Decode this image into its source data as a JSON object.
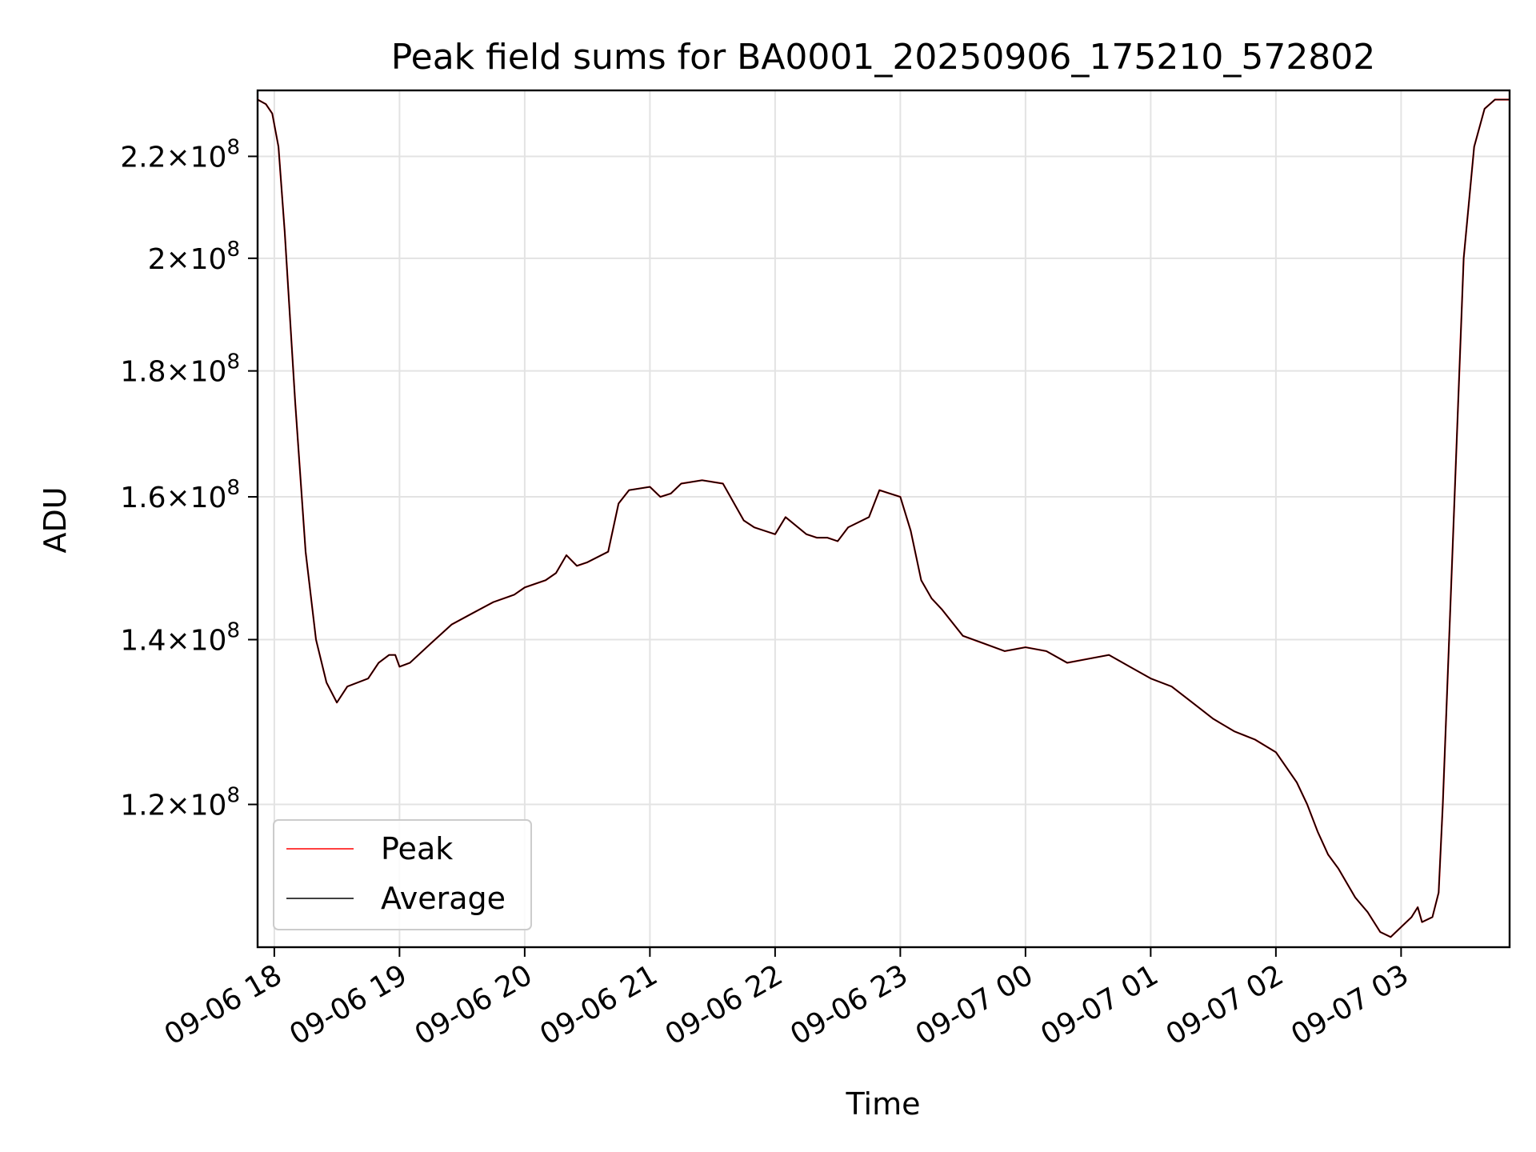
{
  "chart_data": {
    "type": "line",
    "title": "Peak field sums for BA0001_20250906_175210_572802",
    "xlabel": "Time",
    "ylabel": "ADU",
    "y_scale": "log",
    "ylim": [
      105000000.0,
      234000000.0
    ],
    "xlim": [
      "2025-09-06 17:52",
      "2025-09-07 03:52"
    ],
    "grid": true,
    "legend_position": "lower-left",
    "x_tick_values": [
      "2025-09-06 18:00",
      "2025-09-06 19:00",
      "2025-09-06 20:00",
      "2025-09-06 21:00",
      "2025-09-06 22:00",
      "2025-09-06 23:00",
      "2025-09-07 00:00",
      "2025-09-07 01:00",
      "2025-09-07 02:00",
      "2025-09-07 03:00"
    ],
    "x_tick_labels": [
      "09-06 18",
      "09-06 19",
      "09-06 20",
      "09-06 21",
      "09-06 22",
      "09-06 23",
      "09-07 00",
      "09-07 01",
      "09-07 02",
      "09-07 03"
    ],
    "y_tick_values": [
      120000000.0,
      140000000.0,
      160000000.0,
      180000000.0,
      200000000.0,
      220000000.0
    ],
    "y_tick_labels": [
      {
        "mantissa": "1.2",
        "base": "10",
        "exp": "8"
      },
      {
        "mantissa": "1.4",
        "base": "10",
        "exp": "8"
      },
      {
        "mantissa": "1.6",
        "base": "10",
        "exp": "8"
      },
      {
        "mantissa": "1.8",
        "base": "10",
        "exp": "8"
      },
      {
        "mantissa": "2",
        "base": "10",
        "exp": "8"
      },
      {
        "mantissa": "2.2",
        "base": "10",
        "exp": "8"
      }
    ],
    "x": [
      "2025-09-06 17:52",
      "2025-09-06 17:56",
      "2025-09-06 17:59",
      "2025-09-06 18:02",
      "2025-09-06 18:05",
      "2025-09-06 18:10",
      "2025-09-06 18:15",
      "2025-09-06 18:20",
      "2025-09-06 18:25",
      "2025-09-06 18:30",
      "2025-09-06 18:35",
      "2025-09-06 18:40",
      "2025-09-06 18:45",
      "2025-09-06 18:50",
      "2025-09-06 18:55",
      "2025-09-06 18:58",
      "2025-09-06 19:00",
      "2025-09-06 19:05",
      "2025-09-06 19:15",
      "2025-09-06 19:25",
      "2025-09-06 19:35",
      "2025-09-06 19:45",
      "2025-09-06 19:55",
      "2025-09-06 20:00",
      "2025-09-06 20:10",
      "2025-09-06 20:15",
      "2025-09-06 20:20",
      "2025-09-06 20:25",
      "2025-09-06 20:30",
      "2025-09-06 20:40",
      "2025-09-06 20:45",
      "2025-09-06 20:50",
      "2025-09-06 21:00",
      "2025-09-06 21:05",
      "2025-09-06 21:10",
      "2025-09-06 21:15",
      "2025-09-06 21:25",
      "2025-09-06 21:35",
      "2025-09-06 21:45",
      "2025-09-06 21:50",
      "2025-09-06 21:55",
      "2025-09-06 22:00",
      "2025-09-06 22:05",
      "2025-09-06 22:15",
      "2025-09-06 22:20",
      "2025-09-06 22:25",
      "2025-09-06 22:30",
      "2025-09-06 22:35",
      "2025-09-06 22:45",
      "2025-09-06 22:50",
      "2025-09-06 22:55",
      "2025-09-06 23:00",
      "2025-09-06 23:05",
      "2025-09-06 23:10",
      "2025-09-06 23:15",
      "2025-09-06 23:20",
      "2025-09-06 23:30",
      "2025-09-06 23:40",
      "2025-09-06 23:50",
      "2025-09-07 00:00",
      "2025-09-07 00:10",
      "2025-09-07 00:20",
      "2025-09-07 00:30",
      "2025-09-07 00:40",
      "2025-09-07 00:50",
      "2025-09-07 01:00",
      "2025-09-07 01:10",
      "2025-09-07 01:20",
      "2025-09-07 01:30",
      "2025-09-07 01:40",
      "2025-09-07 01:45",
      "2025-09-07 01:50",
      "2025-09-07 02:00",
      "2025-09-07 02:10",
      "2025-09-07 02:15",
      "2025-09-07 02:20",
      "2025-09-07 02:25",
      "2025-09-07 02:30",
      "2025-09-07 02:38",
      "2025-09-07 02:44",
      "2025-09-07 02:50",
      "2025-09-07 02:55",
      "2025-09-07 03:00",
      "2025-09-07 03:05",
      "2025-09-07 03:08",
      "2025-09-07 03:10",
      "2025-09-07 03:15",
      "2025-09-07 03:18",
      "2025-09-07 03:20",
      "2025-09-07 03:25",
      "2025-09-07 03:30",
      "2025-09-07 03:35",
      "2025-09-07 03:40",
      "2025-09-07 03:45",
      "2025-09-07 03:52"
    ],
    "series": [
      {
        "name": "Peak",
        "color": "#ff0000",
        "values": [
          232000000.0,
          231000000.0,
          229000000.0,
          222000000.0,
          205000000.0,
          175000000.0,
          152000000.0,
          140000000.0,
          134500000.0,
          132000000.0,
          134000000.0,
          134500000.0,
          135000000.0,
          137000000.0,
          138000000.0,
          138000000.0,
          136500000.0,
          137000000.0,
          139500000.0,
          142000000.0,
          143500000.0,
          145000000.0,
          146000000.0,
          147000000.0,
          148000000.0,
          149000000.0,
          151500000.0,
          150000000.0,
          150500000.0,
          152000000.0,
          159000000.0,
          161000000.0,
          161500000.0,
          160000000.0,
          160500000.0,
          162000000.0,
          162500000.0,
          162000000.0,
          156500000.0,
          155500000.0,
          155000000.0,
          154500000.0,
          157000000.0,
          154500000.0,
          154000000.0,
          154000000.0,
          153500000.0,
          155500000.0,
          157000000.0,
          161000000.0,
          160500000.0,
          160000000.0,
          155000000.0,
          148000000.0,
          145500000.0,
          144000000.0,
          140500000.0,
          139500000.0,
          138500000.0,
          139000000.0,
          138500000.0,
          137000000.0,
          137500000.0,
          138000000.0,
          136500000.0,
          135000000.0,
          134000000.0,
          132000000.0,
          130000000.0,
          128500000.0,
          128000000.0,
          127500000.0,
          126000000.0,
          122500000.0,
          120000000.0,
          117000000.0,
          114500000.0,
          113000000.0,
          110000000.0,
          108500000.0,
          106500000.0,
          106000000.0,
          107000000.0,
          108000000.0,
          109000000.0,
          107500000.0,
          108000000.0,
          110500000.0,
          120000000.0,
          155000000.0,
          200000000.0,
          222000000.0,
          230000000.0,
          232000000.0,
          232000000.0
        ]
      },
      {
        "name": "Average",
        "color": "#000000",
        "values": [
          232000000.0,
          231000000.0,
          229000000.0,
          222000000.0,
          205000000.0,
          175000000.0,
          152000000.0,
          140000000.0,
          134500000.0,
          132000000.0,
          134000000.0,
          134500000.0,
          135000000.0,
          137000000.0,
          138000000.0,
          138000000.0,
          136500000.0,
          137000000.0,
          139500000.0,
          142000000.0,
          143500000.0,
          145000000.0,
          146000000.0,
          147000000.0,
          148000000.0,
          149000000.0,
          151500000.0,
          150000000.0,
          150500000.0,
          152000000.0,
          159000000.0,
          161000000.0,
          161500000.0,
          160000000.0,
          160500000.0,
          162000000.0,
          162500000.0,
          162000000.0,
          156500000.0,
          155500000.0,
          155000000.0,
          154500000.0,
          157000000.0,
          154500000.0,
          154000000.0,
          154000000.0,
          153500000.0,
          155500000.0,
          157000000.0,
          161000000.0,
          160500000.0,
          160000000.0,
          155000000.0,
          148000000.0,
          145500000.0,
          144000000.0,
          140500000.0,
          139500000.0,
          138500000.0,
          139000000.0,
          138500000.0,
          137000000.0,
          137500000.0,
          138000000.0,
          136500000.0,
          135000000.0,
          134000000.0,
          132000000.0,
          130000000.0,
          128500000.0,
          128000000.0,
          127500000.0,
          126000000.0,
          122500000.0,
          120000000.0,
          117000000.0,
          114500000.0,
          113000000.0,
          110000000.0,
          108500000.0,
          106500000.0,
          106000000.0,
          107000000.0,
          108000000.0,
          109000000.0,
          107500000.0,
          108000000.0,
          110500000.0,
          120000000.0,
          155000000.0,
          200000000.0,
          222000000.0,
          230000000.0,
          232000000.0,
          232000000.0
        ]
      }
    ]
  }
}
